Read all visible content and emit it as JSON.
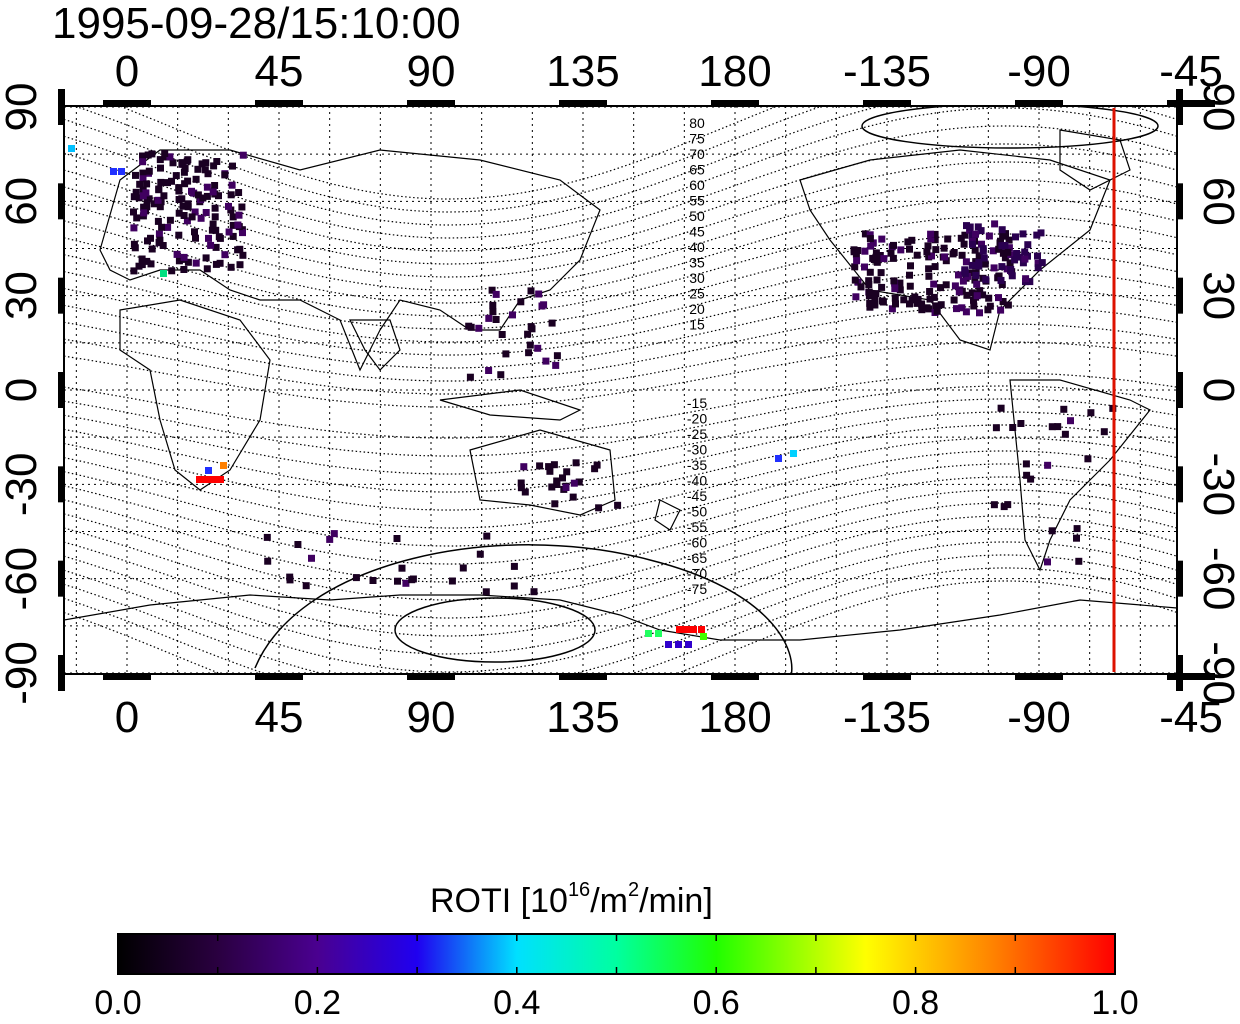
{
  "timestamp": "1995-09-28/15:10:00",
  "map": {
    "lon_ticks": [
      "0",
      "45",
      "90",
      "135",
      "180",
      "-135",
      "-90",
      "-45"
    ],
    "lat_ticks": [
      "90",
      "60",
      "30",
      "0",
      "-30",
      "-60",
      "-90"
    ],
    "contour_labels_north": [
      "80",
      "75",
      "70",
      "65",
      "60",
      "55",
      "50",
      "45",
      "40",
      "35",
      "30",
      "25",
      "20",
      "15"
    ],
    "contour_labels_south": [
      "-15",
      "-20",
      "-25",
      "-30",
      "-35",
      "-40",
      "-45",
      "-50",
      "-55",
      "-60",
      "-65",
      "-70",
      "-75"
    ],
    "terminator_color": "#dd1100"
  },
  "colorbar": {
    "title_base": "ROTI  [10",
    "title_sup1": "16",
    "title_mid": "/m",
    "title_sup2": "2",
    "title_end": "/min]",
    "tick_labels": [
      "0.0",
      "0.2",
      "0.4",
      "0.6",
      "0.8",
      "1.0"
    ],
    "colors": [
      "#000000",
      "#400060",
      "#3000cc",
      "#0060ff",
      "#00e0ff",
      "#00ff80",
      "#40ff00",
      "#ffff00",
      "#ff8000",
      "#ff0000"
    ]
  }
}
